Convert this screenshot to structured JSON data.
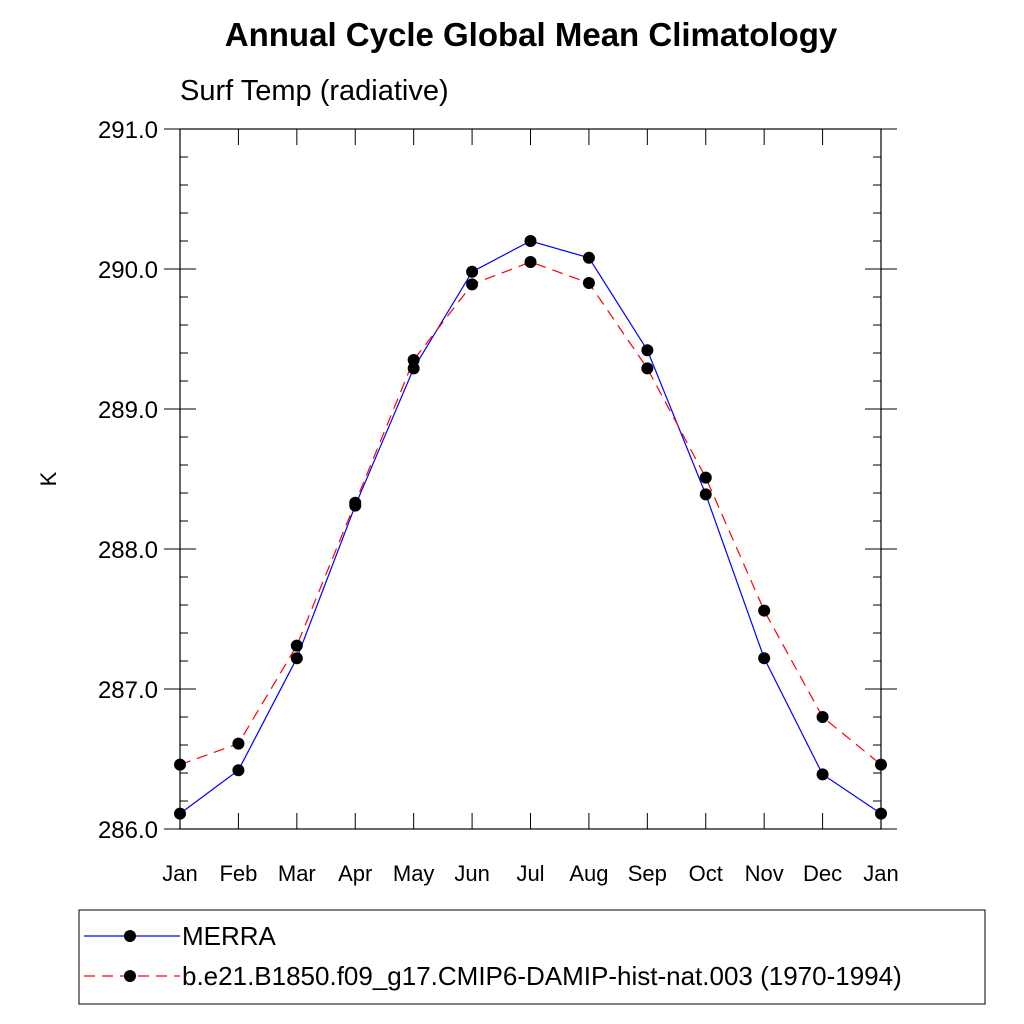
{
  "chart_data": {
    "type": "line",
    "title": "Annual Cycle Global Mean Climatology",
    "subtitle": "Surf Temp (radiative)",
    "ylabel": "K",
    "xlabel": "",
    "categories": [
      "Jan",
      "Feb",
      "Mar",
      "Apr",
      "May",
      "Jun",
      "Jul",
      "Aug",
      "Sep",
      "Oct",
      "Nov",
      "Dec",
      "Jan"
    ],
    "ylim": [
      286.0,
      291.0
    ],
    "yticks": [
      "286.0",
      "287.0",
      "288.0",
      "289.0",
      "290.0",
      "291.0"
    ],
    "series": [
      {
        "name": "MERRA",
        "color": "#0000ff",
        "dash": "solid",
        "values": [
          286.11,
          286.42,
          287.22,
          288.31,
          289.29,
          289.98,
          290.2,
          290.08,
          289.42,
          288.39,
          287.22,
          286.39,
          286.11
        ]
      },
      {
        "name": "b.e21.B1850.f09_g17.CMIP6-DAMIP-hist-nat.003 (1970-1994)",
        "color": "#ff0000",
        "dash": "dashed",
        "values": [
          286.46,
          286.61,
          287.31,
          288.33,
          289.35,
          289.89,
          290.05,
          289.9,
          289.29,
          288.51,
          287.56,
          286.8,
          286.46
        ]
      }
    ],
    "grid": false,
    "legend_position": "bottom"
  }
}
